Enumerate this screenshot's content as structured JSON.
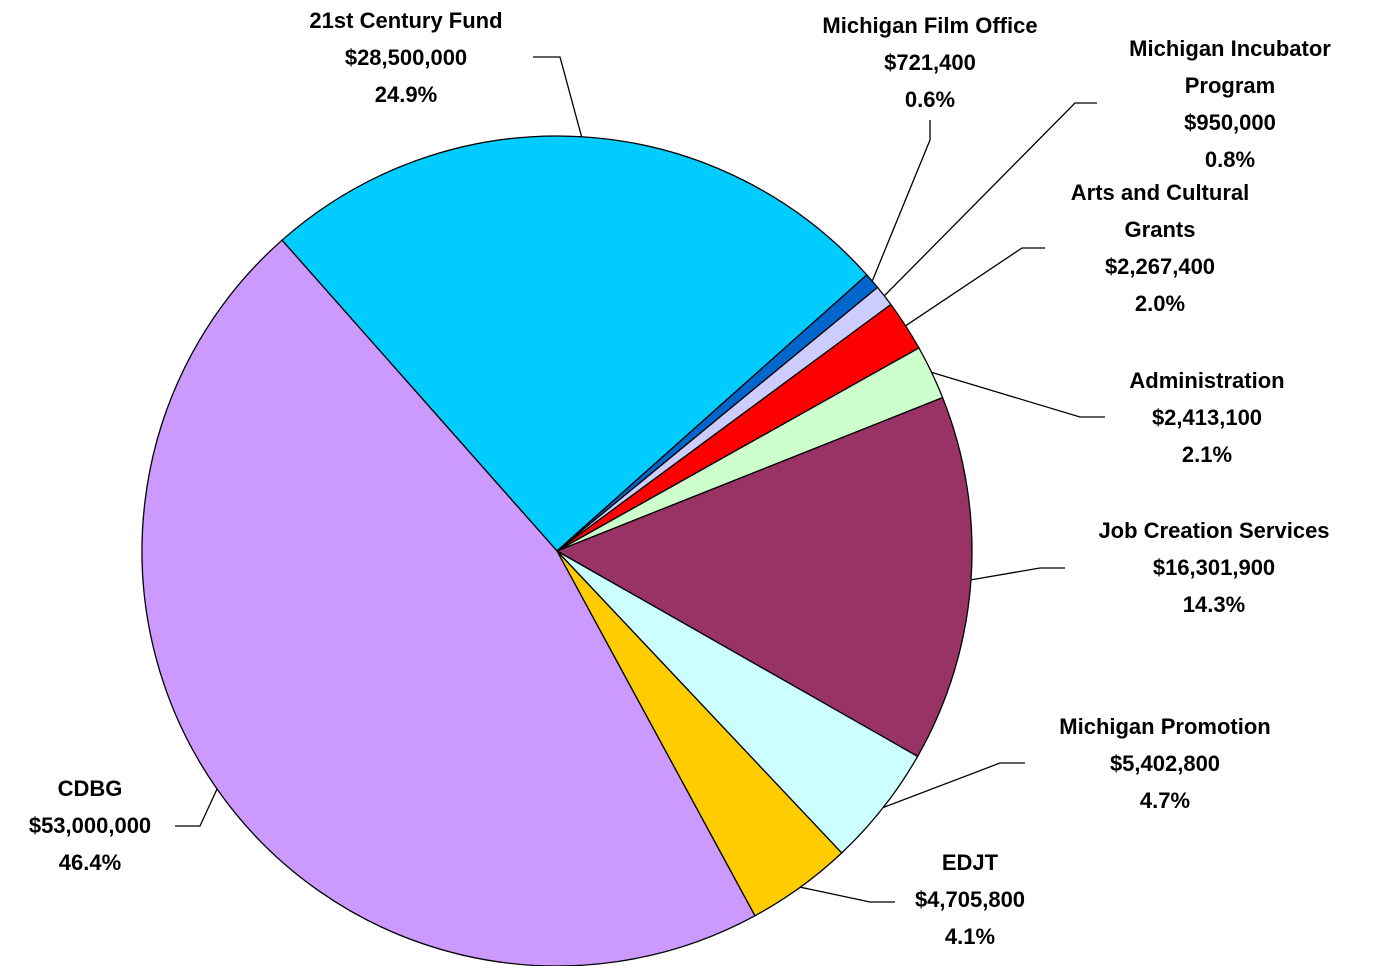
{
  "chart_data": {
    "type": "pie",
    "categories": [
      "21st Century Fund",
      "Michigan Film Office",
      "Michigan Incubator Program",
      "Arts and Cultural Grants",
      "Administration",
      "Job Creation Services",
      "Michigan Promotion",
      "EDJT",
      "CDBG"
    ],
    "values": [
      28500000,
      721400,
      950000,
      2267400,
      2413100,
      16301900,
      5402800,
      4705800,
      53000000
    ],
    "value_labels": [
      "$28,500,000",
      "$721,400",
      "$950,000",
      "$2,267,400",
      "$2,413,100",
      "$16,301,900",
      "$5,402,800",
      "$4,705,800",
      "$53,000,000"
    ],
    "percent_labels": [
      "24.9%",
      "0.6%",
      "0.8%",
      "2.0%",
      "2.1%",
      "14.3%",
      "4.7%",
      "4.1%",
      "46.4%"
    ],
    "colors": [
      "#00ccff",
      "#0066cc",
      "#ccccff",
      "#ff0000",
      "#ccffcc",
      "#993366",
      "#ccffff",
      "#ffcc00",
      "#cc99ff"
    ]
  }
}
